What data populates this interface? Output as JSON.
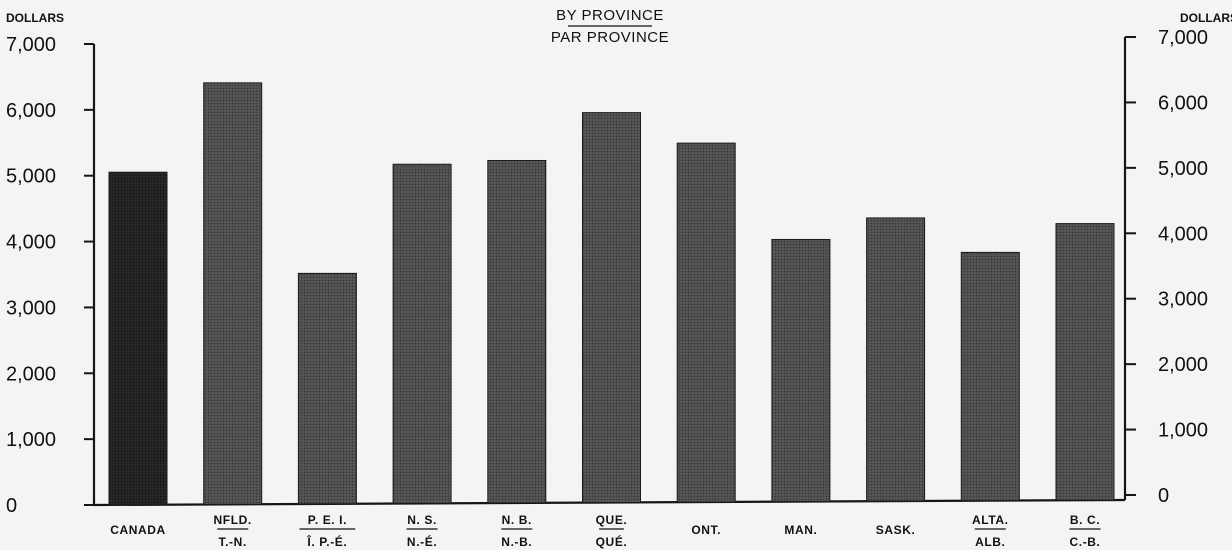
{
  "chart_data": {
    "type": "bar",
    "title": "BY PROVINCE",
    "subtitle": "PAR PROVINCE",
    "ylabel_left": "DOLLARS",
    "ylabel_right": "DOLLARS",
    "ylim": [
      0,
      7000
    ],
    "yticks": [
      "0",
      "1,000",
      "2,000",
      "3,000",
      "4,000",
      "5,000",
      "6,000",
      "7,000"
    ],
    "grid": false,
    "categories": [
      {
        "en": "CANADA",
        "fr": ""
      },
      {
        "en": "NFLD.",
        "fr": "T.-N."
      },
      {
        "en": "P. E. I.",
        "fr": "Î.  P.-É."
      },
      {
        "en": "N. S.",
        "fr": "N.-É."
      },
      {
        "en": "N. B.",
        "fr": "N.-B."
      },
      {
        "en": "QUE.",
        "fr": "QUÉ."
      },
      {
        "en": "ONT.",
        "fr": ""
      },
      {
        "en": "MAN.",
        "fr": ""
      },
      {
        "en": "SASK.",
        "fr": ""
      },
      {
        "en": "ALTA.",
        "fr": "ALB."
      },
      {
        "en": "B. C.",
        "fr": "C.-B."
      }
    ],
    "values": [
      5050,
      6400,
      3500,
      5150,
      5200,
      5920,
      5450,
      3980,
      4300,
      3770,
      4200
    ],
    "colors": {
      "CANADA": "#222222",
      "default": "#4a4a4a",
      "light": "#585858"
    }
  }
}
